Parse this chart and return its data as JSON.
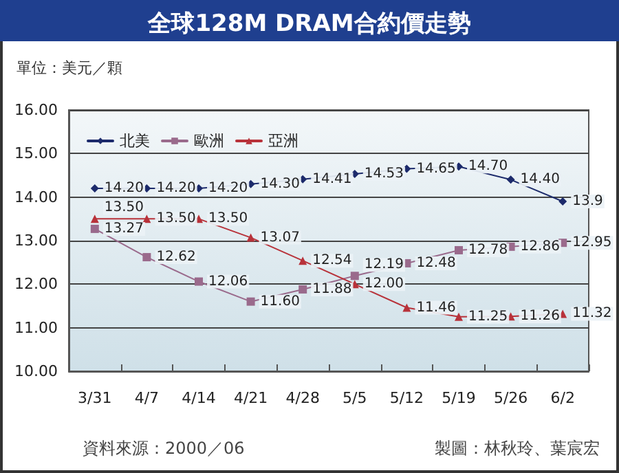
{
  "chart_data": {
    "type": "line",
    "title": "全球128M DRAM合約價走勢",
    "ylabel": "單位：美元／顆",
    "annotations": [
      "資料來源：2000／06",
      "製圖：林秋玲、葉宸宏"
    ],
    "categories": [
      "3/31",
      "4/7",
      "4/14",
      "4/21",
      "4/28",
      "5/5",
      "5/12",
      "5/19",
      "5/26",
      "6/2"
    ],
    "series": [
      {
        "name": "北美",
        "color": "#1c2a6b",
        "marker": "diamond",
        "values": [
          14.2,
          14.2,
          14.2,
          14.3,
          14.41,
          14.53,
          14.65,
          14.7,
          14.4,
          13.9
        ],
        "value_labels": [
          "14.20",
          "14.20",
          "14.20",
          "14.30",
          "14.41",
          "14.53",
          "14.65",
          "14.70",
          "14.40",
          "13.9"
        ]
      },
      {
        "name": "歐洲",
        "color": "#9a6a8c",
        "marker": "square",
        "values": [
          13.27,
          12.62,
          12.06,
          11.6,
          11.88,
          12.19,
          12.48,
          12.78,
          12.86,
          12.95
        ],
        "value_labels": [
          "13.27",
          "12.62",
          "12.06",
          "11.60",
          "11.88",
          "12.19",
          "12.48",
          "12.78",
          "12.86",
          "12.95"
        ]
      },
      {
        "name": "亞洲",
        "color": "#b8323a",
        "marker": "triangle",
        "values": [
          13.5,
          13.5,
          13.5,
          13.07,
          12.54,
          12.0,
          11.46,
          11.25,
          11.26,
          11.32
        ],
        "value_labels": [
          "13.50",
          "13.50",
          "13.50",
          "13.07",
          "12.54",
          "12.00",
          "11.46",
          "11.25",
          "11.26",
          "11.32"
        ]
      }
    ],
    "ylim": [
      10,
      16
    ],
    "yticks": [
      {
        "value": 10,
        "label": "10.00"
      },
      {
        "value": 11,
        "label": "11.00"
      },
      {
        "value": 12,
        "label": "12.00"
      },
      {
        "value": 13,
        "label": "13.00"
      },
      {
        "value": 14,
        "label": "14.00"
      },
      {
        "value": 15,
        "label": "15.00"
      },
      {
        "value": 16,
        "label": "16.00"
      }
    ],
    "grid": "y",
    "legend": "top left",
    "line_style": "solid"
  }
}
